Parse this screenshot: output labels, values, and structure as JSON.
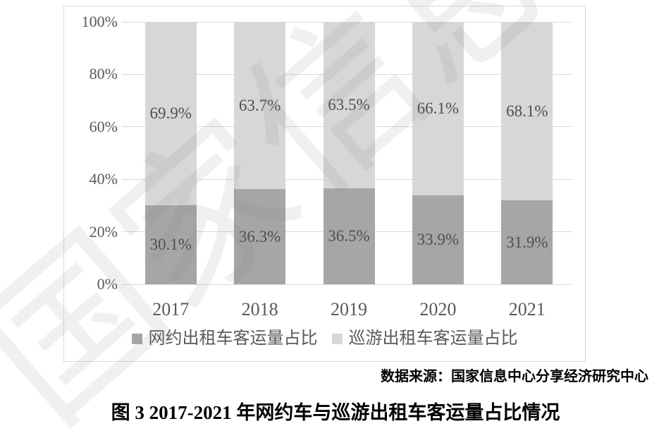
{
  "watermark": {
    "text": "国家信息中心"
  },
  "chart_data": {
    "type": "bar",
    "stacked": true,
    "categories": [
      "2017",
      "2018",
      "2019",
      "2020",
      "2021"
    ],
    "series": [
      {
        "name": "网约出租车客运量占比",
        "values": [
          30.1,
          36.3,
          36.5,
          33.9,
          31.9
        ],
        "labels": [
          "30.1%",
          "36.3%",
          "36.5%",
          "33.9%",
          "31.9%"
        ],
        "color": "#a6a6a6"
      },
      {
        "name": "巡游出租车客运量占比",
        "values": [
          69.9,
          63.7,
          63.5,
          66.1,
          68.1
        ],
        "labels": [
          "69.9%",
          "63.7%",
          "63.5%",
          "66.1%",
          "68.1%"
        ],
        "color": "#d7d7d7"
      }
    ],
    "ylim": [
      0,
      100
    ],
    "yticks": [
      {
        "value": 0,
        "label": "0%"
      },
      {
        "value": 20,
        "label": "20%"
      },
      {
        "value": 40,
        "label": "40%"
      },
      {
        "value": 60,
        "label": "60%"
      },
      {
        "value": 80,
        "label": "80%"
      },
      {
        "value": 100,
        "label": "100%"
      }
    ],
    "grid": true,
    "legend_position": "bottom",
    "title": ""
  },
  "source_note": "数据来源：国家信息中心分享经济研究中心",
  "caption": "图 3 2017-2021 年网约车与巡游出租车客运量占比情况",
  "colors": {
    "grid": "#d9d9d9",
    "border": "#d9d9d9",
    "axis_text": "#595959",
    "bar_label_text": "#4f4f4f"
  }
}
